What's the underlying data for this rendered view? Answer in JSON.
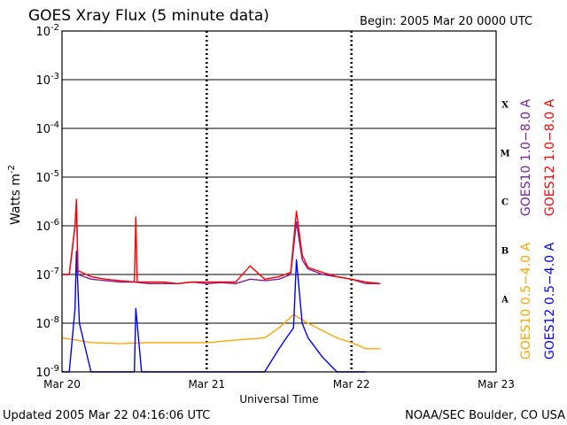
{
  "chart_data": {
    "type": "line",
    "title": "GOES Xray Flux (5 minute data)",
    "begin_label": "Begin:  2005 Mar 20 0000 UTC",
    "xlabel": "Universal Time",
    "ylabel": {
      "base": "Watts m",
      "exponent": "-2"
    },
    "y_scale": "log",
    "ylim": [
      1e-09,
      0.01
    ],
    "y_ticks": [
      {
        "value": 0.01,
        "base": "10",
        "exp": "-2"
      },
      {
        "value": 0.001,
        "base": "10",
        "exp": "-3"
      },
      {
        "value": 0.0001,
        "base": "10",
        "exp": "-4"
      },
      {
        "value": 1e-05,
        "base": "10",
        "exp": "-5"
      },
      {
        "value": 1e-06,
        "base": "10",
        "exp": "-6"
      },
      {
        "value": 1e-07,
        "base": "10",
        "exp": "-7"
      },
      {
        "value": 1e-08,
        "base": "10",
        "exp": "-8"
      },
      {
        "value": 1e-09,
        "base": "10",
        "exp": "-9"
      }
    ],
    "x_unit": "days since 2005 Mar 20 0000 UTC",
    "xlim": [
      0,
      3
    ],
    "x_ticks": [
      {
        "value": 0,
        "label": "Mar 20"
      },
      {
        "value": 1,
        "label": "Mar 21"
      },
      {
        "value": 2,
        "label": "Mar 22"
      },
      {
        "value": 3,
        "label": "Mar 23"
      }
    ],
    "flare_classes": [
      {
        "label": "X",
        "lower": 0.0001,
        "upper": 0.001
      },
      {
        "label": "M",
        "lower": 1e-05,
        "upper": 0.0001
      },
      {
        "label": "C",
        "lower": 1e-06,
        "upper": 1e-05
      },
      {
        "label": "B",
        "lower": 1e-07,
        "upper": 1e-06
      },
      {
        "label": "A",
        "lower": 1e-08,
        "upper": 1e-07
      }
    ],
    "grid": true,
    "legend_position": "right-vertical",
    "series": [
      {
        "name": "GOES10 1.0−8.0 A",
        "color": "#7a1fa2",
        "x": [
          0,
          0.05,
          0.09,
          0.1,
          0.11,
          0.2,
          0.3,
          0.4,
          0.5,
          0.6,
          0.7,
          0.8,
          0.9,
          1.0,
          1.1,
          1.2,
          1.3,
          1.4,
          1.5,
          1.58,
          1.62,
          1.66,
          1.7,
          1.8,
          1.9,
          2.0,
          2.1,
          2.2
        ],
        "y": [
          1e-07,
          1e-07,
          1e-06,
          3e-06,
          1e-07,
          8e-08,
          7.5e-08,
          7e-08,
          7e-08,
          6.5e-08,
          6.5e-08,
          6.5e-08,
          7e-08,
          6.5e-08,
          6.8e-08,
          6.5e-08,
          8e-08,
          7.5e-08,
          8e-08,
          1e-07,
          1.2e-06,
          2e-07,
          1.3e-07,
          1e-07,
          9e-08,
          8e-08,
          6.5e-08,
          6.5e-08
        ]
      },
      {
        "name": "GOES12 1.0−8.0 A",
        "color": "#ff0000",
        "x": [
          0,
          0.05,
          0.09,
          0.1,
          0.11,
          0.2,
          0.3,
          0.4,
          0.5,
          0.51,
          0.52,
          0.6,
          0.7,
          0.8,
          0.9,
          1.0,
          1.1,
          1.2,
          1.3,
          1.4,
          1.5,
          1.58,
          1.62,
          1.66,
          1.7,
          1.8,
          1.9,
          2.0,
          2.1,
          2.2
        ],
        "y": [
          1e-07,
          1e-07,
          1e-06,
          3.5e-06,
          1.2e-07,
          9e-08,
          8e-08,
          7.5e-08,
          7e-08,
          1.5e-06,
          7e-08,
          7e-08,
          7e-08,
          6.5e-08,
          7e-08,
          7e-08,
          7e-08,
          7e-08,
          1.5e-07,
          8e-08,
          9e-08,
          1.1e-07,
          2e-06,
          2.5e-07,
          1.4e-07,
          1.1e-07,
          9e-08,
          8e-08,
          7e-08,
          6.5e-08
        ]
      },
      {
        "name": "GOES10 0.5−4.0 A",
        "color": "#ffa500",
        "x": [
          0,
          0.1,
          0.2,
          0.4,
          0.6,
          0.8,
          1.0,
          1.2,
          1.4,
          1.5,
          1.6,
          1.7,
          1.8,
          1.9,
          2.0,
          2.1,
          2.2
        ],
        "y": [
          5e-09,
          4.5e-09,
          4e-09,
          3.8e-09,
          4e-09,
          4e-09,
          4e-09,
          4.5e-09,
          5e-09,
          8e-09,
          1.5e-08,
          1e-08,
          7e-09,
          5e-09,
          4e-09,
          3e-09,
          3e-09
        ]
      },
      {
        "name": "GOES12 0.5−4.0 A",
        "color": "#0000ff",
        "x": [
          0,
          0.05,
          0.09,
          0.1,
          0.12,
          0.2,
          0.3,
          0.4,
          0.5,
          0.51,
          0.55,
          0.6,
          0.8,
          1.0,
          1.2,
          1.4,
          1.5,
          1.55,
          1.6,
          1.62,
          1.66,
          1.7,
          1.8,
          1.9,
          2.0,
          2.1
        ],
        "y": [
          1e-09,
          1e-09,
          2e-08,
          3e-07,
          1e-08,
          1e-09,
          1e-09,
          1e-09,
          1e-09,
          2e-08,
          1e-09,
          1e-09,
          1e-09,
          1e-09,
          1e-09,
          1e-09,
          3e-09,
          5e-09,
          8e-09,
          2e-07,
          1e-08,
          5e-09,
          2e-09,
          1e-09,
          1e-09,
          1e-09
        ]
      }
    ]
  },
  "footer": {
    "updated": "Updated 2005 Mar 22 04:16:06 UTC",
    "source": "NOAA/SEC Boulder, CO USA"
  }
}
